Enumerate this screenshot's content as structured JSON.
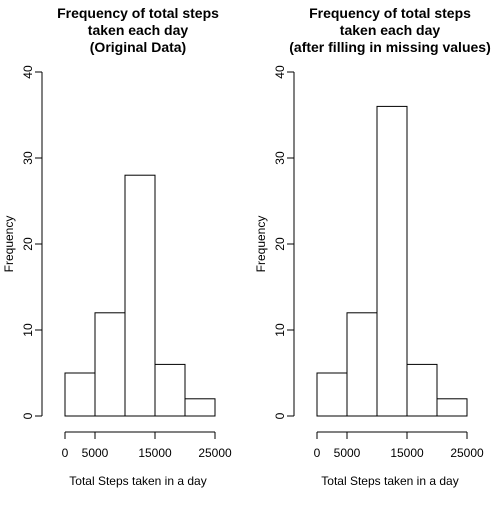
{
  "chart_data": [
    {
      "type": "bar",
      "title": [
        "Frequency of total steps",
        "taken each day",
        "(Original Data)"
      ],
      "xlabel": "Total Steps taken in a day",
      "ylabel": "Frequency",
      "bin_edges": [
        0,
        5000,
        10000,
        15000,
        20000,
        25000
      ],
      "values": [
        5,
        12,
        28,
        6,
        2
      ],
      "xticks": [
        0,
        5000,
        15000,
        25000
      ],
      "xtick_labels": [
        "0",
        "5000",
        "15000",
        "25000"
      ],
      "yticks": [
        0,
        10,
        20,
        30,
        40
      ],
      "ytick_labels": [
        "0",
        "10",
        "20",
        "30",
        "40"
      ],
      "xlim": [
        0,
        25000
      ],
      "ylim": [
        0,
        40
      ],
      "grid": false
    },
    {
      "type": "bar",
      "title": [
        "Frequency of total steps",
        "taken each day",
        "(after filling in missing values)"
      ],
      "xlabel": "Total Steps taken in a day",
      "ylabel": "Frequency",
      "bin_edges": [
        0,
        5000,
        10000,
        15000,
        20000,
        25000
      ],
      "values": [
        5,
        12,
        36,
        6,
        2
      ],
      "xticks": [
        0,
        5000,
        15000,
        25000
      ],
      "xtick_labels": [
        "0",
        "5000",
        "15000",
        "25000"
      ],
      "yticks": [
        0,
        10,
        20,
        30,
        40
      ],
      "ytick_labels": [
        "0",
        "10",
        "20",
        "30",
        "40"
      ],
      "xlim": [
        0,
        25000
      ],
      "ylim": [
        0,
        40
      ],
      "grid": false
    }
  ]
}
